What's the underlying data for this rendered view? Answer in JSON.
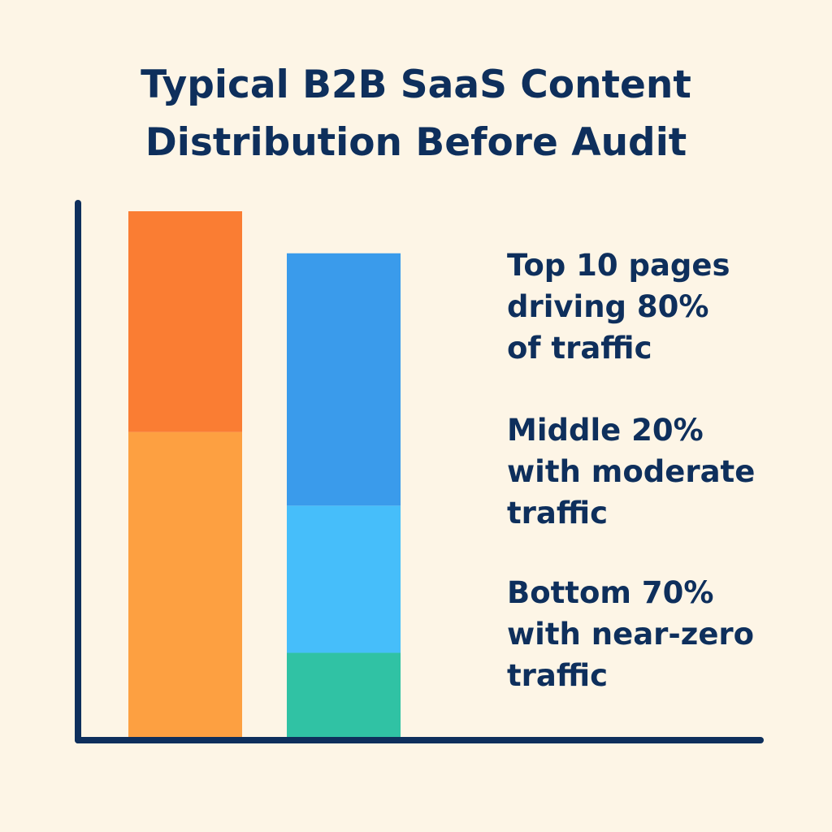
{
  "chart_data": {
    "type": "bar",
    "title": "Typical B2B SaaS Content Distribution Before Audit",
    "title_lines": [
      "Typical B2B SaaS Content",
      "Distribution Before Audit"
    ],
    "xlabel": "",
    "ylabel": "",
    "grid": false,
    "ylim": [
      0,
      100
    ],
    "stacked": true,
    "categories": [
      "",
      ""
    ],
    "bars": [
      {
        "segments": [
          {
            "value": 58,
            "color": "#FDA041"
          },
          {
            "value": 42,
            "color": "#FA7D33"
          }
        ]
      },
      {
        "segments": [
          {
            "value": 16,
            "color": "#30C2A4"
          },
          {
            "value": 28,
            "color": "#46BEFA"
          },
          {
            "value": 48,
            "color": "#3A9BEB"
          }
        ]
      }
    ],
    "annotations": [
      {
        "lines": [
          "Top 10 pages",
          "driving 80%",
          "of traffic"
        ]
      },
      {
        "lines": [
          "Middle 20%",
          "with moderate",
          "traffic"
        ]
      },
      {
        "lines": [
          "Bottom 70%",
          "with near-zero",
          "traffic"
        ]
      }
    ],
    "colors": {
      "background": "#FDF5E6",
      "text": "#0E2F5C",
      "axis": "#0E2F5C"
    }
  }
}
